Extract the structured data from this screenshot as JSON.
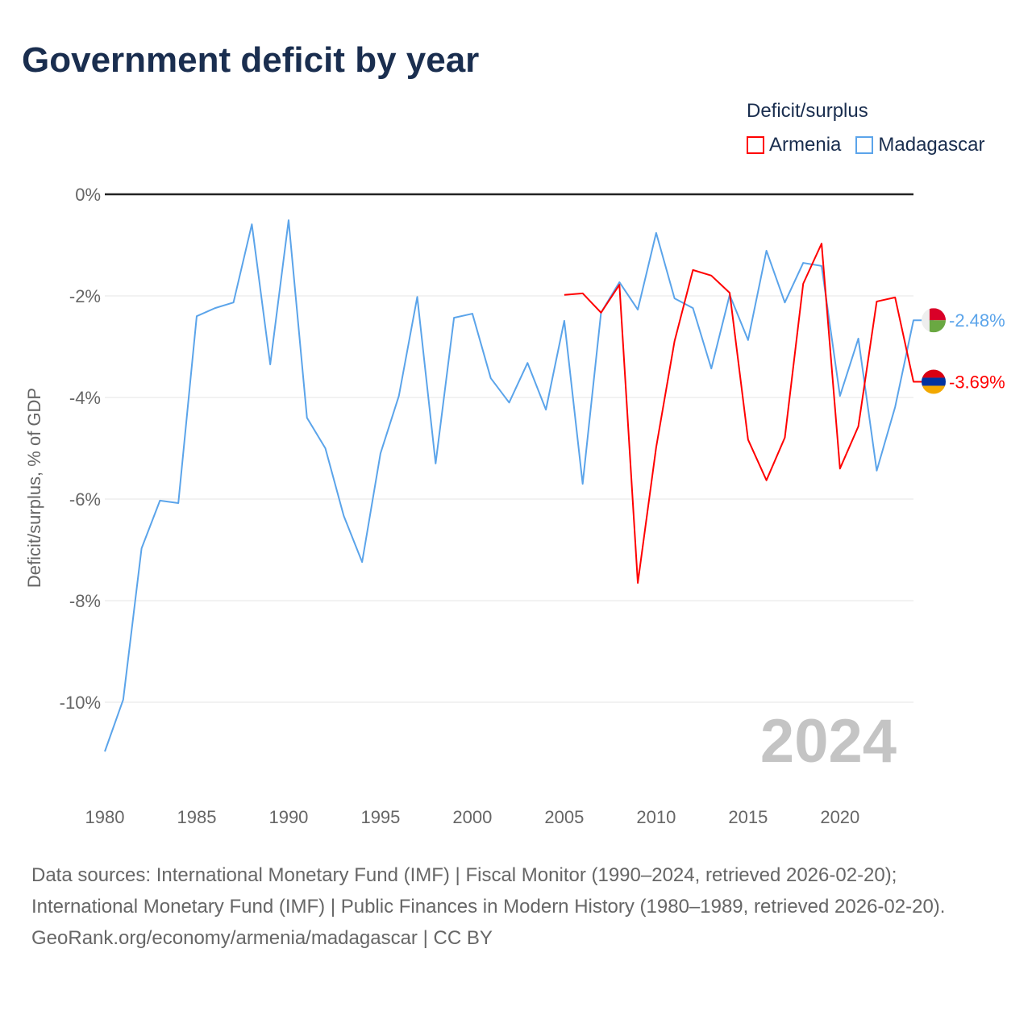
{
  "title": "Government deficit by year",
  "chart_data": {
    "type": "line",
    "title": "Government deficit by year",
    "xlabel": "",
    "ylabel": "Deficit/surplus, % of GDP",
    "legend_title": "Deficit/surplus",
    "legend_position": "top-right",
    "xlim": [
      1980,
      2024
    ],
    "ylim": [
      -11,
      0
    ],
    "x_ticks": [
      1980,
      1985,
      1990,
      1995,
      2000,
      2005,
      2010,
      2015,
      2020
    ],
    "y_ticks": [
      0,
      -2,
      -4,
      -6,
      -8,
      -10
    ],
    "y_tick_labels": [
      "0%",
      "-2%",
      "-4%",
      "-6%",
      "-8%",
      "-10%"
    ],
    "watermark_year": "2024",
    "series": [
      {
        "name": "Armenia",
        "color": "#ff0000",
        "end_label": "-3.69%",
        "x": [
          2005,
          2006,
          2007,
          2008,
          2009,
          2010,
          2011,
          2012,
          2013,
          2014,
          2015,
          2016,
          2017,
          2018,
          2019,
          2020,
          2021,
          2022,
          2023,
          2024
        ],
        "values": [
          -1.98,
          -1.95,
          -2.33,
          -1.78,
          -7.65,
          -4.98,
          -2.89,
          -1.49,
          -1.6,
          -1.94,
          -4.83,
          -5.63,
          -4.79,
          -1.76,
          -0.97,
          -5.4,
          -4.57,
          -2.11,
          -2.03,
          -3.69
        ]
      },
      {
        "name": "Madagascar",
        "color": "#5ba4ea",
        "end_label": "-2.48%",
        "x": [
          1980,
          1981,
          1982,
          1983,
          1984,
          1985,
          1986,
          1987,
          1988,
          1989,
          1990,
          1991,
          1992,
          1993,
          1994,
          1995,
          1996,
          1997,
          1998,
          1999,
          2000,
          2001,
          2002,
          2003,
          2004,
          2005,
          2006,
          2007,
          2008,
          2009,
          2010,
          2011,
          2012,
          2013,
          2014,
          2015,
          2016,
          2017,
          2018,
          2019,
          2020,
          2021,
          2022,
          2023,
          2024
        ],
        "values": [
          -10.97,
          -9.95,
          -6.97,
          -6.03,
          -6.08,
          -2.4,
          -2.24,
          -2.13,
          -0.59,
          -3.35,
          -0.51,
          -4.4,
          -5.0,
          -6.33,
          -7.24,
          -5.1,
          -3.97,
          -2.02,
          -5.3,
          -2.43,
          -2.35,
          -3.62,
          -4.1,
          -3.32,
          -4.24,
          -2.49,
          -5.7,
          -2.33,
          -1.73,
          -2.27,
          -0.76,
          -2.05,
          -2.24,
          -3.43,
          -1.98,
          -2.87,
          -1.11,
          -2.13,
          -1.35,
          -1.41,
          -3.97,
          -2.84,
          -5.44,
          -4.19,
          -2.48
        ]
      }
    ]
  },
  "footer": {
    "sources": "Data sources: International Monetary Fund (IMF) | Fiscal Monitor (1990–2024, retrieved 2026-02-20); International Monetary Fund (IMF) | Public Finances in Modern History (1980–1989, retrieved 2026-02-20).",
    "credit": "GeoRank.org/economy/armenia/madagascar | CC BY"
  }
}
